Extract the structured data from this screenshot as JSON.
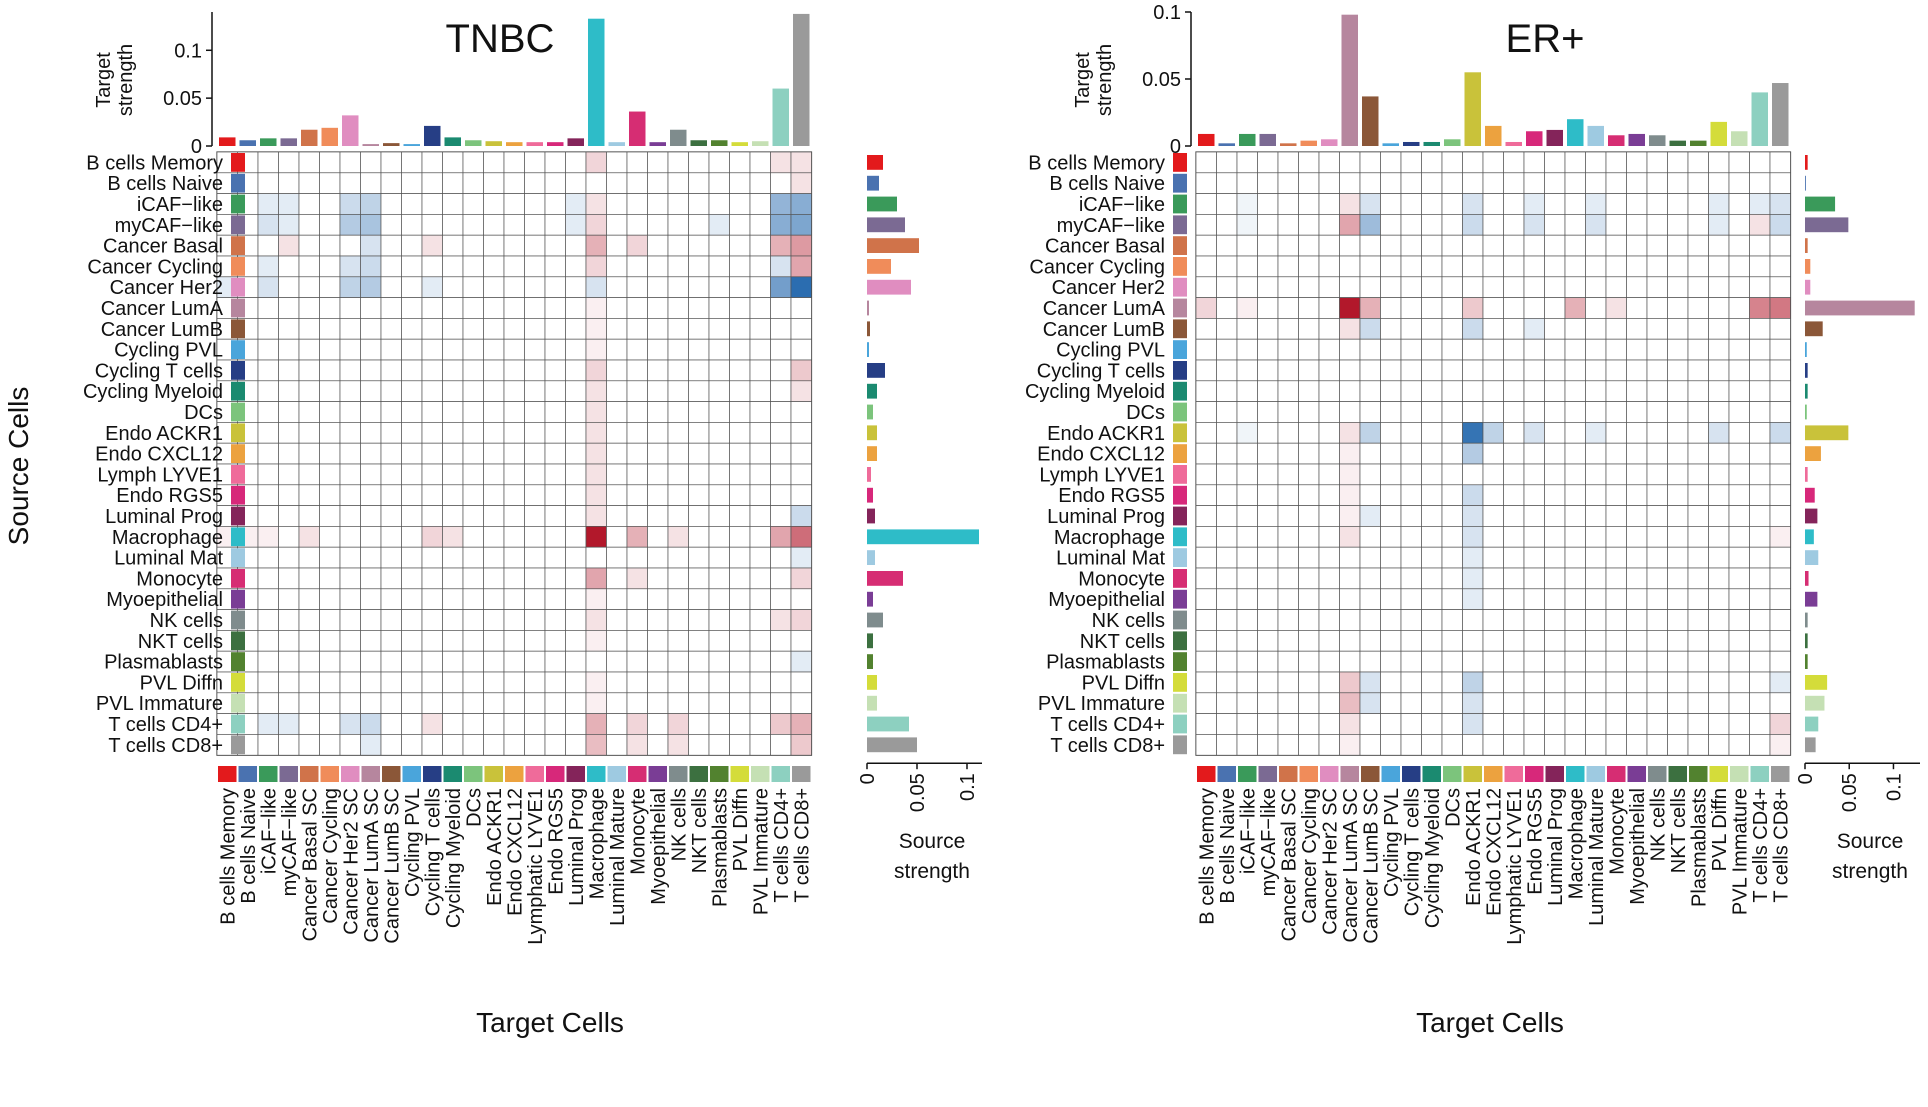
{
  "figure": {
    "y_axis_title": "Source Cells",
    "x_axis_title": "Target Cells",
    "target_strength_label": [
      "Target",
      "strength"
    ],
    "source_strength_label": [
      "Source",
      "strength"
    ]
  },
  "chart_data": [
    {
      "type": "heatmap",
      "title": "TNBC",
      "xlabel": "Target Cells",
      "ylabel": "Source Cells",
      "rows": [
        "B cells Memory",
        "B cells Naive",
        "iCAF−like",
        "myCAF−like",
        "Cancer Basal",
        "Cancer Cycling",
        "Cancer Her2",
        "Cancer LumA",
        "Cancer LumB",
        "Cycling PVL",
        "Cycling T cells",
        "Cycling Myeloid",
        "DCs",
        "Endo ACKR1",
        "Endo CXCL12",
        "Lymph LYVE1",
        "Endo RGS5",
        "Luminal Prog",
        "Macrophage",
        "Luminal Mat",
        "Monocyte",
        "Myoepithelial",
        "NK cells",
        "NKT cells",
        "Plasmablasts",
        "PVL Diffn",
        "PVL Immature",
        "T cells CD4+",
        "T cells CD8+"
      ],
      "columns": [
        "B cells Memory",
        "B cells Naive",
        "iCAF−like",
        "myCAF−like",
        "Cancer Basal SC",
        "Cancer Cycling",
        "Cancer Her2 SC",
        "Cancer LumA SC",
        "Cancer LumB SC",
        "Cycling PVL",
        "Cycling T cells",
        "Cycling Myeloid",
        "DCs",
        "Endo ACKR1",
        "Endo CXCL12",
        "Lymphatic LYVE1",
        "Endo RGS5",
        "Luminal Prog",
        "Macrophage",
        "Luminal Mature",
        "Monocyte",
        "Myoepithelial",
        "NK cells",
        "NKT cells",
        "Plasmablasts",
        "PVL Diffn",
        "PVL Immature",
        "T cells CD4+",
        "T cells CD8+"
      ],
      "target_strength": {
        "ylim": [
          0,
          0.14
        ],
        "ticks": [
          "0",
          "0.05",
          "0.1"
        ],
        "tick_values": [
          0,
          0.05,
          0.1
        ],
        "values": [
          0.009,
          0.006,
          0.008,
          0.008,
          0.017,
          0.019,
          0.032,
          0.002,
          0.003,
          0.002,
          0.021,
          0.009,
          0.006,
          0.005,
          0.004,
          0.004,
          0.004,
          0.008,
          0.133,
          0.004,
          0.036,
          0.004,
          0.017,
          0.006,
          0.006,
          0.004,
          0.005,
          0.06,
          0.138
        ]
      },
      "source_strength": {
        "xlim": [
          0,
          0.115
        ],
        "ticks": [
          "0",
          "0.05",
          "0.1"
        ],
        "tick_values": [
          0,
          0.05,
          0.1
        ],
        "values": [
          0.016,
          0.012,
          0.03,
          0.038,
          0.052,
          0.024,
          0.044,
          0.002,
          0.003,
          0.002,
          0.018,
          0.01,
          0.006,
          0.01,
          0.01,
          0.004,
          0.006,
          0.008,
          0.112,
          0.008,
          0.036,
          0.006,
          0.016,
          0.006,
          0.006,
          0.01,
          0.01,
          0.042,
          0.05
        ]
      },
      "cells": [
        [
          0,
          18,
          0.15
        ],
        [
          0,
          27,
          0.1
        ],
        [
          0,
          28,
          0.1
        ],
        [
          1,
          28,
          0.1
        ],
        [
          2,
          2,
          -0.1
        ],
        [
          2,
          6,
          -0.2
        ],
        [
          2,
          7,
          -0.25
        ],
        [
          2,
          18,
          0.1
        ],
        [
          2,
          27,
          -0.45
        ],
        [
          2,
          28,
          -0.5
        ],
        [
          2,
          3,
          -0.1
        ],
        [
          2,
          17,
          -0.1
        ],
        [
          3,
          2,
          -0.15
        ],
        [
          3,
          6,
          -0.3
        ],
        [
          3,
          7,
          -0.35
        ],
        [
          3,
          18,
          0.15
        ],
        [
          3,
          27,
          -0.5
        ],
        [
          3,
          28,
          -0.55
        ],
        [
          3,
          3,
          -0.1
        ],
        [
          3,
          17,
          -0.1
        ],
        [
          3,
          24,
          -0.1
        ],
        [
          4,
          3,
          0.1
        ],
        [
          4,
          7,
          -0.15
        ],
        [
          4,
          18,
          0.3
        ],
        [
          4,
          20,
          0.15
        ],
        [
          4,
          27,
          0.3
        ],
        [
          4,
          28,
          0.4
        ],
        [
          4,
          10,
          0.1
        ],
        [
          5,
          2,
          -0.1
        ],
        [
          5,
          6,
          -0.15
        ],
        [
          5,
          7,
          -0.2
        ],
        [
          5,
          18,
          0.15
        ],
        [
          5,
          27,
          -0.15
        ],
        [
          5,
          28,
          0.35
        ],
        [
          6,
          0,
          -0.1
        ],
        [
          6,
          2,
          -0.15
        ],
        [
          6,
          6,
          -0.25
        ],
        [
          6,
          7,
          -0.3
        ],
        [
          6,
          18,
          -0.15
        ],
        [
          6,
          27,
          -0.6
        ],
        [
          6,
          28,
          -0.95
        ],
        [
          6,
          10,
          -0.1
        ],
        [
          7,
          18,
          0.05
        ],
        [
          8,
          18,
          0.05
        ],
        [
          9,
          18,
          0.05
        ],
        [
          10,
          18,
          0.15
        ],
        [
          10,
          28,
          0.2
        ],
        [
          11,
          18,
          0.1
        ],
        [
          11,
          28,
          0.1
        ],
        [
          12,
          18,
          0.1
        ],
        [
          13,
          18,
          0.1
        ],
        [
          14,
          18,
          0.1
        ],
        [
          15,
          18,
          0.1
        ],
        [
          16,
          18,
          0.1
        ],
        [
          17,
          28,
          -0.2
        ],
        [
          17,
          18,
          0.1
        ],
        [
          18,
          0,
          0.05
        ],
        [
          18,
          4,
          0.1
        ],
        [
          18,
          10,
          0.15
        ],
        [
          18,
          11,
          0.1
        ],
        [
          18,
          18,
          1.0
        ],
        [
          18,
          20,
          0.3
        ],
        [
          18,
          22,
          0.1
        ],
        [
          18,
          27,
          0.35
        ],
        [
          18,
          28,
          0.6
        ],
        [
          18,
          1,
          0.05
        ],
        [
          18,
          2,
          0.05
        ],
        [
          19,
          28,
          -0.1
        ],
        [
          20,
          18,
          0.35
        ],
        [
          20,
          20,
          0.1
        ],
        [
          20,
          28,
          0.15
        ],
        [
          21,
          18,
          0.05
        ],
        [
          22,
          18,
          0.1
        ],
        [
          22,
          27,
          0.1
        ],
        [
          22,
          28,
          0.15
        ],
        [
          23,
          18,
          0.05
        ],
        [
          24,
          28,
          -0.1
        ],
        [
          25,
          18,
          0.05
        ],
        [
          26,
          18,
          0.05
        ],
        [
          27,
          2,
          -0.1
        ],
        [
          27,
          3,
          -0.1
        ],
        [
          27,
          6,
          -0.15
        ],
        [
          27,
          7,
          -0.2
        ],
        [
          27,
          10,
          0.1
        ],
        [
          27,
          18,
          0.3
        ],
        [
          27,
          20,
          0.15
        ],
        [
          27,
          22,
          0.15
        ],
        [
          27,
          27,
          0.2
        ],
        [
          27,
          28,
          0.3
        ],
        [
          28,
          18,
          0.25
        ],
        [
          28,
          20,
          0.1
        ],
        [
          28,
          28,
          0.2
        ],
        [
          28,
          7,
          -0.1
        ],
        [
          28,
          22,
          0.1
        ]
      ]
    },
    {
      "type": "heatmap",
      "title": "ER+",
      "xlabel": "Target Cells",
      "ylabel": "",
      "rows": [
        "B cells Memory",
        "B cells Naive",
        "iCAF−like",
        "myCAF−like",
        "Cancer Basal",
        "Cancer Cycling",
        "Cancer Her2",
        "Cancer LumA",
        "Cancer LumB",
        "Cycling PVL",
        "Cycling T cells",
        "Cycling Myeloid",
        "DCs",
        "Endo ACKR1",
        "Endo CXCL12",
        "Lymph LYVE1",
        "Endo RGS5",
        "Luminal Prog",
        "Macrophage",
        "Luminal Mat",
        "Monocyte",
        "Myoepithelial",
        "NK cells",
        "NKT cells",
        "Plasmablasts",
        "PVL Diffn",
        "PVL Immature",
        "T cells CD4+",
        "T cells CD8+"
      ],
      "columns": [
        "B cells Memory",
        "B cells Naive",
        "iCAF−like",
        "myCAF−like",
        "Cancer Basal SC",
        "Cancer Cycling",
        "Cancer Her2 SC",
        "Cancer LumA SC",
        "Cancer LumB SC",
        "Cycling PVL",
        "Cycling T cells",
        "Cycling Myeloid",
        "DCs",
        "Endo ACKR1",
        "Endo CXCL12",
        "Lymphatic LYVE1",
        "Endo RGS5",
        "Luminal Prog",
        "Macrophage",
        "Luminal Mature",
        "Monocyte",
        "Myoepithelial",
        "NK cells",
        "NKT cells",
        "Plasmablasts",
        "PVL Diffn",
        "PVL Immature",
        "T cells CD4+",
        "T cells CD8+"
      ],
      "target_strength": {
        "ylim": [
          0,
          0.1
        ],
        "ticks": [
          "0",
          "0.05",
          "0.1"
        ],
        "tick_values": [
          0,
          0.05,
          0.1
        ],
        "values": [
          0.009,
          0.002,
          0.009,
          0.009,
          0.002,
          0.004,
          0.005,
          0.098,
          0.037,
          0.002,
          0.003,
          0.003,
          0.005,
          0.055,
          0.015,
          0.003,
          0.011,
          0.012,
          0.02,
          0.015,
          0.008,
          0.009,
          0.008,
          0.004,
          0.004,
          0.018,
          0.011,
          0.04,
          0.047
        ]
      },
      "source_strength": {
        "xlim": [
          0,
          0.13
        ],
        "ticks": [
          "0",
          "0.05",
          "0.1"
        ],
        "tick_values": [
          0,
          0.05,
          0.1
        ],
        "values": [
          0.003,
          0.001,
          0.034,
          0.049,
          0.003,
          0.006,
          0.006,
          0.124,
          0.02,
          0.002,
          0.003,
          0.003,
          0.002,
          0.049,
          0.018,
          0.003,
          0.011,
          0.014,
          0.01,
          0.015,
          0.004,
          0.014,
          0.003,
          0.003,
          0.003,
          0.025,
          0.022,
          0.015,
          0.012
        ]
      },
      "cells": [
        [
          2,
          7,
          0.1
        ],
        [
          2,
          8,
          -0.15
        ],
        [
          2,
          13,
          -0.15
        ],
        [
          2,
          2,
          -0.05
        ],
        [
          2,
          16,
          -0.1
        ],
        [
          2,
          19,
          -0.1
        ],
        [
          2,
          25,
          -0.1
        ],
        [
          2,
          27,
          -0.1
        ],
        [
          2,
          28,
          -0.15
        ],
        [
          3,
          7,
          0.35
        ],
        [
          3,
          8,
          -0.4
        ],
        [
          3,
          13,
          -0.2
        ],
        [
          3,
          2,
          -0.05
        ],
        [
          3,
          16,
          -0.15
        ],
        [
          3,
          19,
          -0.15
        ],
        [
          3,
          25,
          -0.1
        ],
        [
          3,
          27,
          0.1
        ],
        [
          3,
          28,
          -0.2
        ],
        [
          7,
          0,
          0.15
        ],
        [
          7,
          7,
          1.0
        ],
        [
          7,
          8,
          0.3
        ],
        [
          7,
          13,
          0.2
        ],
        [
          7,
          18,
          0.3
        ],
        [
          7,
          27,
          0.5
        ],
        [
          7,
          28,
          0.55
        ],
        [
          7,
          20,
          0.1
        ],
        [
          7,
          2,
          0.05
        ],
        [
          8,
          7,
          0.1
        ],
        [
          8,
          8,
          -0.2
        ],
        [
          8,
          13,
          -0.2
        ],
        [
          8,
          16,
          -0.1
        ],
        [
          13,
          7,
          0.1
        ],
        [
          13,
          8,
          -0.25
        ],
        [
          13,
          13,
          -0.9
        ],
        [
          13,
          14,
          -0.25
        ],
        [
          13,
          2,
          -0.05
        ],
        [
          13,
          16,
          -0.15
        ],
        [
          13,
          19,
          -0.1
        ],
        [
          13,
          25,
          -0.15
        ],
        [
          13,
          28,
          -0.2
        ],
        [
          14,
          7,
          0.05
        ],
        [
          14,
          13,
          -0.3
        ],
        [
          15,
          7,
          0.05
        ],
        [
          16,
          7,
          0.05
        ],
        [
          16,
          13,
          -0.2
        ],
        [
          17,
          7,
          0.05
        ],
        [
          17,
          13,
          -0.15
        ],
        [
          17,
          8,
          -0.1
        ],
        [
          18,
          7,
          0.1
        ],
        [
          18,
          13,
          -0.15
        ],
        [
          18,
          28,
          0.05
        ],
        [
          19,
          13,
          -0.1
        ],
        [
          20,
          13,
          -0.1
        ],
        [
          21,
          13,
          -0.1
        ],
        [
          25,
          7,
          0.2
        ],
        [
          25,
          8,
          -0.15
        ],
        [
          25,
          13,
          -0.25
        ],
        [
          25,
          28,
          -0.1
        ],
        [
          26,
          7,
          0.25
        ],
        [
          26,
          8,
          -0.15
        ],
        [
          26,
          13,
          -0.15
        ],
        [
          27,
          7,
          0.1
        ],
        [
          27,
          13,
          -0.15
        ],
        [
          27,
          28,
          0.15
        ],
        [
          28,
          7,
          0.05
        ],
        [
          28,
          28,
          0.05
        ]
      ]
    }
  ],
  "colors": {
    "cell_types": [
      "#e31a1c",
      "#4a72b0",
      "#3a9a5a",
      "#7b6a93",
      "#d0734a",
      "#f08c5a",
      "#e08dc0",
      "#b6869e",
      "#8b5738",
      "#4aa5db",
      "#263e85",
      "#1b8a70",
      "#7cc47c",
      "#c9c23a",
      "#eca23f",
      "#ef6b9a",
      "#d7287a",
      "#84245a",
      "#2ebcc8",
      "#9ecae1",
      "#d62d73",
      "#7a3d95",
      "#7f8c8d",
      "#3c7040",
      "#52822f",
      "#d4dc3a",
      "#c5e0b4",
      "#8dd0c0",
      "#9a9a9a"
    ],
    "heat_positive": "#b2182b",
    "heat_negative": "#2166ac",
    "grid_line": "#555555"
  }
}
